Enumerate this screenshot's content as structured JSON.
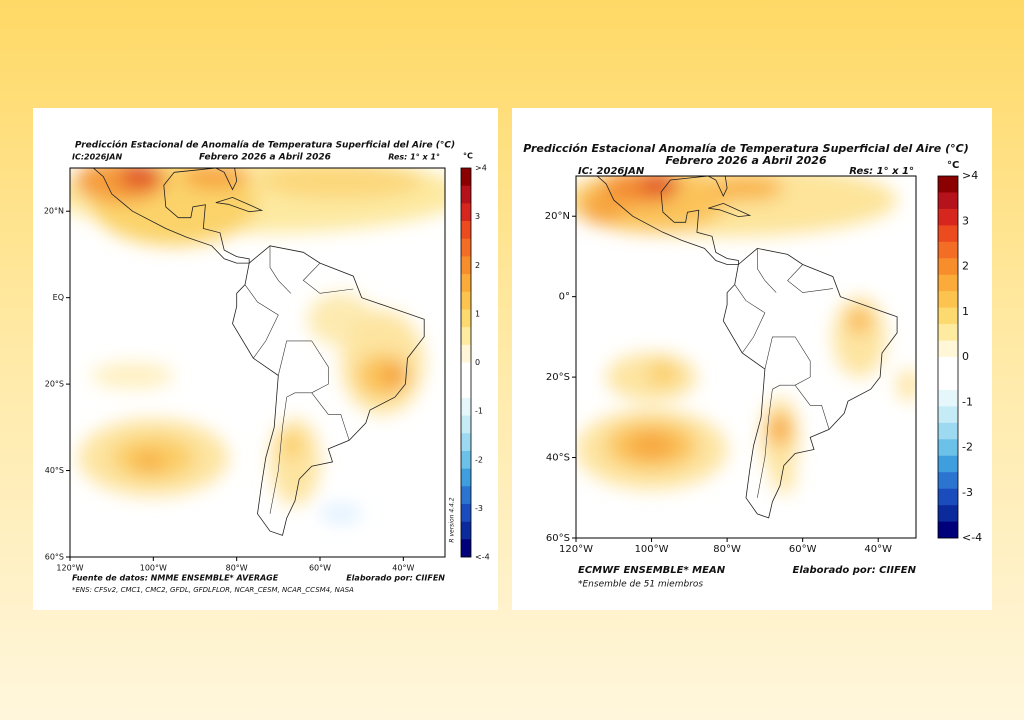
{
  "panels": [
    {
      "title": "Predicción Estacional de Anomalía de Temperatura Superficial del Aire (°C)",
      "ic": "IC:2026JAN",
      "period": "Febrero 2026 a Abril 2026",
      "res": "Res: 1° x 1°",
      "unit": "°C",
      "colorbar_labels": [
        ">4",
        "3",
        "2",
        "1",
        "0",
        "-1",
        "-2",
        "-3",
        "<-4"
      ],
      "lat_labels": [
        "20°N",
        "EQ",
        "20°S",
        "40°S",
        "60°S"
      ],
      "lon_labels": [
        "120°W",
        "100°W",
        "80°W",
        "60°W",
        "40°W"
      ],
      "source": "Fuente de datos: NMME ENSEMBLE* AVERAGE",
      "credit": "Elaborado por: CIIFEN",
      "footnote": "*ENS: CFSv2, CMC1, CMC2, GFDL, GFDLFLOR, NCAR_CESM, NCAR_CCSM4, NASA",
      "version": "R version 4.4.2"
    },
    {
      "title": "Predicción Estacional Anomalía de Temperatura Superficial del Aire (°C)",
      "ic": "IC: 2026JAN",
      "period": "Febrero 2026 a Abril 2026",
      "res": "Res: 1° x 1°",
      "unit": "°C",
      "colorbar_labels": [
        ">4",
        "3",
        "2",
        "1",
        "0",
        "-1",
        "-2",
        "-3",
        "<-4"
      ],
      "lat_labels": [
        "20°N",
        "0°",
        "20°S",
        "40°S",
        "60°S"
      ],
      "lon_labels": [
        "120°W",
        "100°W",
        "80°W",
        "60°W",
        "40°W"
      ],
      "source": "ECMWF ENSEMBLE* MEAN",
      "credit": "Elaborado por: CIIFEN",
      "footnote": "*Ensemble de 51 miembros"
    }
  ]
}
